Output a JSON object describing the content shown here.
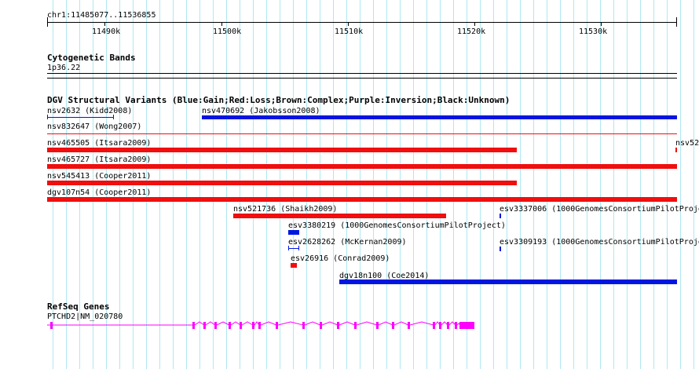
{
  "ruler": {
    "position": "chr1:11485077..11536855",
    "ticks": [
      "11490k",
      "11500k",
      "11510k",
      "11520k",
      "11530k"
    ]
  },
  "cytoband": {
    "title": "Cytogenetic Bands",
    "band": "1p36.22"
  },
  "dgv": {
    "title": "DGV Structural Variants (Blue:Gain;Red:Loss;Brown:Complex;Purple:Inversion;Black:Unknown)",
    "colors": {
      "gain": "#0016e0",
      "loss": "#f00e0e"
    },
    "labels": {
      "nsv2632": "nsv2632 (Kidd2008)",
      "nsv470692": "nsv470692 (Jakobsson2008)",
      "nsv832647": "nsv832647 (Wong2007)",
      "nsv465505": "nsv465505 (Itsara2009)",
      "nsv52": "nsv52",
      "nsv465727": "nsv465727 (Itsara2009)",
      "nsv545413": "nsv545413 (Cooper2011)",
      "dgv107n54": "dgv107n54 (Cooper2011)",
      "nsv521736": "nsv521736 (Shaikh2009)",
      "esv3337006": "esv3337006 (1000GenomesConsortiumPilotProje",
      "esv3380219": "esv3380219 (1000GenomesConsortiumPilotProject)",
      "esv2628262": "esv2628262 (McKernan2009)",
      "esv3309193": "esv3309193 (1000GenomesConsortiumPilotProje",
      "esv26916": "esv26916 (Conrad2009)",
      "dgv18n100": "dgv18n100 (Coe2014)"
    }
  },
  "refseq": {
    "title": "RefSeq Genes",
    "gene": "PTCHD2|NM_020780",
    "color": "#ff00ff"
  }
}
